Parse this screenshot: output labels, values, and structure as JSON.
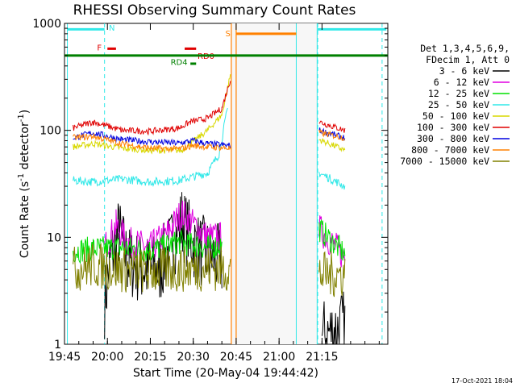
{
  "chart_data": {
    "type": "line",
    "title": "RHESSI Observing Summary Count Rates",
    "xlabel": "Start Time (20-May-04 19:44:42)",
    "ylabel_main": "Count Rate (s",
    "ylabel_sup": "-1",
    "ylabel_mid": " detector",
    "ylabel_end": ")",
    "y_scale": "log",
    "ylim": [
      1,
      1000
    ],
    "xlim_min": [
      0,
      113
    ],
    "x_ticks": [
      {
        "t": 0,
        "label": "19:45"
      },
      {
        "t": 15,
        "label": "20:00"
      },
      {
        "t": 30,
        "label": "20:15"
      },
      {
        "t": 45,
        "label": "20:30"
      },
      {
        "t": 60,
        "label": "20:45"
      },
      {
        "t": 75,
        "label": "21:00"
      },
      {
        "t": 90,
        "label": "21:15"
      }
    ],
    "y_ticks": [
      {
        "v": 1,
        "label": "1"
      },
      {
        "v": 10,
        "label": "10"
      },
      {
        "v": 100,
        "label": "100"
      },
      {
        "v": 1000,
        "label": "1000"
      }
    ],
    "legend_header": [
      "Det 1,3,4,5,6,9,",
      "FDecim 1, Att 0"
    ],
    "series": [
      {
        "name": "3 - 6 keV",
        "color": "#000000"
      },
      {
        "name": "6 - 12 keV",
        "color": "#e000e0"
      },
      {
        "name": "12 - 25 keV",
        "color": "#00e000"
      },
      {
        "name": "25 - 50 keV",
        "color": "#30e8e8"
      },
      {
        "name": "50 - 100 keV",
        "color": "#d8d800"
      },
      {
        "name": "100 - 300 keV",
        "color": "#e00000"
      },
      {
        "name": "300 - 800 keV",
        "color": "#0000e0"
      },
      {
        "name": "800 - 7000 keV",
        "color": "#ff8000"
      },
      {
        "name": "7000 - 15000 keV",
        "color": "#808000"
      }
    ],
    "series_levels": [
      {
        "name": "3 - 6 keV",
        "values": [
          [
            14,
            2.5
          ],
          [
            16,
            6
          ],
          [
            19,
            11
          ],
          [
            22,
            6
          ],
          [
            27,
            5
          ],
          [
            33,
            5
          ],
          [
            38,
            9
          ],
          [
            41,
            14
          ],
          [
            46,
            8
          ],
          [
            54,
            6
          ],
          [
            55,
            6
          ],
          [
            90,
            1.2
          ],
          [
            98,
            1.5
          ]
        ]
      },
      {
        "name": "6 - 12 keV",
        "values": [
          [
            14,
            8
          ],
          [
            18,
            13
          ],
          [
            22,
            9
          ],
          [
            30,
            8
          ],
          [
            36,
            11
          ],
          [
            41,
            17
          ],
          [
            44,
            14
          ],
          [
            50,
            10
          ],
          [
            55,
            10
          ],
          [
            89,
            12
          ],
          [
            98,
            6.5
          ]
        ]
      },
      {
        "name": "12 - 25 keV",
        "values": [
          [
            3,
            7.5
          ],
          [
            10,
            7.8
          ],
          [
            20,
            8
          ],
          [
            30,
            7.5
          ],
          [
            40,
            9
          ],
          [
            45,
            8.5
          ],
          [
            50,
            8
          ],
          [
            55,
            8.5
          ],
          [
            89,
            12
          ],
          [
            98,
            7
          ]
        ]
      },
      {
        "name": "25 - 50 keV",
        "values": [
          [
            3,
            34
          ],
          [
            10,
            33
          ],
          [
            20,
            35
          ],
          [
            30,
            33
          ],
          [
            40,
            34
          ],
          [
            50,
            40
          ],
          [
            54,
            60
          ],
          [
            57,
            160
          ],
          [
            89,
            40
          ],
          [
            98,
            30
          ]
        ]
      },
      {
        "name": "50 - 100 keV",
        "values": [
          [
            3,
            70
          ],
          [
            10,
            75
          ],
          [
            20,
            68
          ],
          [
            30,
            65
          ],
          [
            41,
            65
          ],
          [
            44,
            75
          ],
          [
            50,
            100
          ],
          [
            55,
            140
          ],
          [
            58,
            330
          ],
          [
            89,
            82
          ],
          [
            98,
            65
          ]
        ]
      },
      {
        "name": "100 - 300 keV",
        "values": [
          [
            3,
            105
          ],
          [
            10,
            120
          ],
          [
            20,
            100
          ],
          [
            30,
            98
          ],
          [
            40,
            105
          ],
          [
            44,
            120
          ],
          [
            50,
            130
          ],
          [
            55,
            160
          ],
          [
            58,
            300
          ],
          [
            89,
            120
          ],
          [
            98,
            100
          ]
        ]
      },
      {
        "name": "300 - 800 keV",
        "values": [
          [
            3,
            85
          ],
          [
            10,
            95
          ],
          [
            20,
            82
          ],
          [
            30,
            78
          ],
          [
            40,
            76
          ],
          [
            45,
            80
          ],
          [
            50,
            75
          ],
          [
            58,
            72
          ],
          [
            89,
            100
          ],
          [
            98,
            85
          ]
        ]
      },
      {
        "name": "800 - 7000 keV",
        "values": [
          [
            3,
            85
          ],
          [
            10,
            88
          ],
          [
            20,
            75
          ],
          [
            30,
            68
          ],
          [
            40,
            67
          ],
          [
            45,
            72
          ],
          [
            50,
            70
          ],
          [
            58,
            68
          ],
          [
            89,
            95
          ],
          [
            98,
            85
          ]
        ]
      },
      {
        "name": "7000 - 15000 keV",
        "values": [
          [
            3,
            5
          ],
          [
            10,
            5.5
          ],
          [
            20,
            5
          ],
          [
            30,
            4.8
          ],
          [
            40,
            5
          ],
          [
            50,
            5.2
          ],
          [
            58,
            5
          ],
          [
            89,
            4.5
          ],
          [
            98,
            4.5
          ]
        ]
      }
    ],
    "flag_bars": [
      {
        "label": "N",
        "color": "#30e8e8"
      },
      {
        "label": "F",
        "color": "#e00000"
      },
      {
        "label": "RD0",
        "color": "#e00000"
      },
      {
        "label": "RD4",
        "color": "#008000"
      },
      {
        "label": "S",
        "color": "#ff8000"
      }
    ],
    "footer_timestamp": "17-Oct-2021 18:04"
  }
}
